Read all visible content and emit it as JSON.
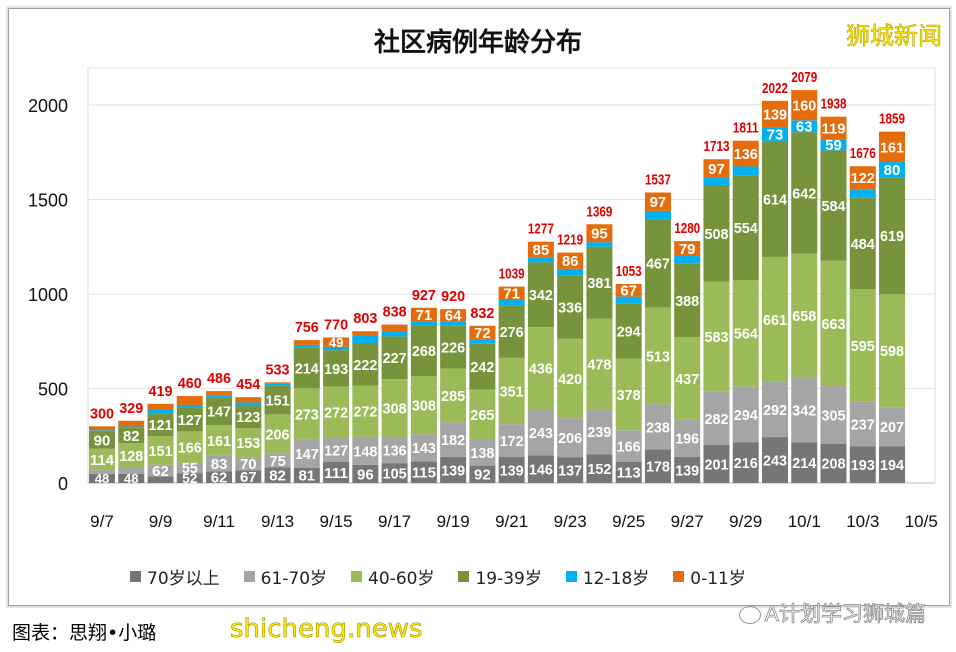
{
  "chart_data": {
    "type": "bar",
    "stacked": true,
    "title": "社区病例年龄分布",
    "categories": [
      "9/7",
      "9/8",
      "9/9",
      "9/10",
      "9/11",
      "9/12",
      "9/13",
      "9/14",
      "9/15",
      "9/16",
      "9/17",
      "9/18",
      "9/19",
      "9/20",
      "9/21",
      "9/22",
      "9/23",
      "9/24",
      "9/25",
      "9/26",
      "9/27",
      "9/28",
      "9/29",
      "9/30",
      "10/1",
      "10/2",
      "10/3",
      "10/4"
    ],
    "x_tick_labels": [
      "9/7",
      "9/9",
      "9/11",
      "9/13",
      "9/15",
      "9/17",
      "9/19",
      "9/21",
      "9/23",
      "9/25",
      "9/27",
      "9/29",
      "10/1",
      "10/3",
      "10/5"
    ],
    "y_tick_labels": [
      "0",
      "500",
      "1000",
      "1500",
      "2000"
    ],
    "ylim": [
      0,
      2200
    ],
    "grid": true,
    "legend_position": "bottom",
    "series": [
      {
        "name": "70岁以上",
        "color": "#767676",
        "values": [
          48,
          48,
          35,
          52,
          62,
          67,
          82,
          81,
          111,
          96,
          105,
          115,
          139,
          92,
          139,
          146,
          137,
          152,
          113,
          178,
          139,
          201,
          216,
          243,
          214,
          208,
          193,
          194
        ]
      },
      {
        "name": "61-70岁",
        "color": "#a5a5a5",
        "values": [
          20,
          34,
          62,
          55,
          83,
          70,
          75,
          147,
          127,
          148,
          136,
          143,
          182,
          138,
          172,
          243,
          206,
          239,
          166,
          238,
          196,
          282,
          294,
          292,
          342,
          305,
          237,
          207
        ]
      },
      {
        "name": "40-60岁",
        "color": "#9bbb59",
        "values": [
          114,
          128,
          151,
          166,
          161,
          153,
          206,
          273,
          272,
          272,
          308,
          308,
          285,
          265,
          351,
          436,
          420,
          478,
          378,
          513,
          437,
          583,
          564,
          661,
          658,
          663,
          595,
          598
        ]
      },
      {
        "name": "19-39岁",
        "color": "#77933c",
        "values": [
          90,
          82,
          121,
          127,
          147,
          123,
          151,
          214,
          193,
          222,
          227,
          268,
          226,
          242,
          276,
          342,
          336,
          381,
          294,
          467,
          388,
          508,
          554,
          614,
          642,
          584,
          484,
          619
        ]
      },
      {
        "name": "12-18岁",
        "color": "#00b0f0",
        "values": [
          7,
          7,
          20,
          13,
          11,
          13,
          11,
          16,
          18,
          42,
          23,
          22,
          24,
          23,
          30,
          25,
          34,
          24,
          35,
          44,
          41,
          42,
          47,
          73,
          63,
          59,
          45,
          80
        ]
      },
      {
        "name": "0-11岁",
        "color": "#e46c0a",
        "values": [
          21,
          30,
          30,
          47,
          22,
          28,
          8,
          25,
          49,
          23,
          39,
          71,
          64,
          72,
          71,
          85,
          86,
          95,
          67,
          97,
          79,
          97,
          136,
          139,
          160,
          119,
          122,
          161
        ]
      }
    ],
    "totals": [
      300,
      329,
      419,
      460,
      486,
      454,
      533,
      756,
      770,
      803,
      838,
      927,
      920,
      832,
      1039,
      1277,
      1219,
      1369,
      1053,
      1537,
      1280,
      1713,
      1811,
      2022,
      2079,
      1938,
      1676,
      1859
    ],
    "total_label_color": "#e00000"
  },
  "watermark_top": "狮城新闻",
  "caption": "图表：思翔•小璐",
  "watermark_bottom": "shicheng.news",
  "wechat_account": "A计划学习狮城篇"
}
